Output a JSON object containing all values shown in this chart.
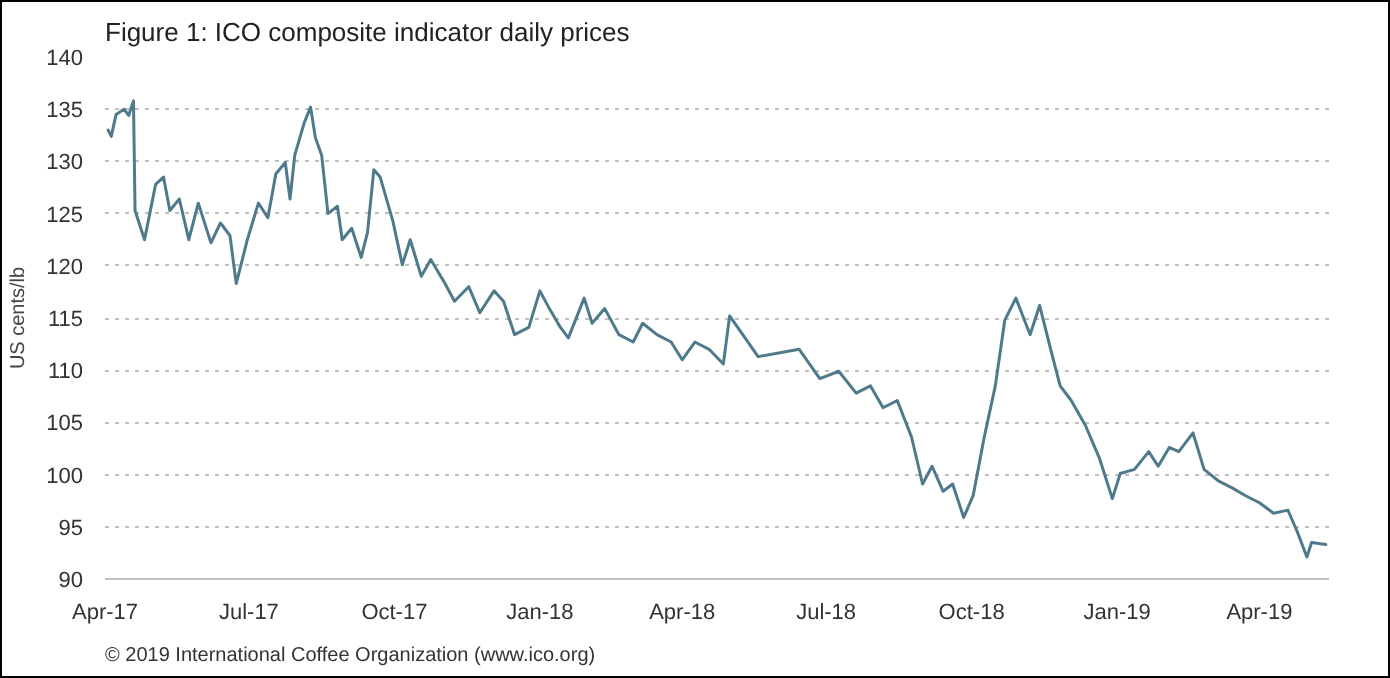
{
  "chart_data": {
    "type": "line",
    "title": "Figure 1: ICO composite indicator daily prices",
    "ylabel": "US cents/lb",
    "annotations": [
      "© 2019 International Coffee Organization (www.ico.org)"
    ],
    "xlim": [
      "2017-04-01",
      "2019-05-15"
    ],
    "xticks": [
      {
        "value": "2017-04-01",
        "label": "Apr-17"
      },
      {
        "value": "2017-07-01",
        "label": "Jul-17"
      },
      {
        "value": "2017-10-01",
        "label": "Oct-17"
      },
      {
        "value": "2018-01-01",
        "label": "Jan-18"
      },
      {
        "value": "2018-04-01",
        "label": "Apr-18"
      },
      {
        "value": "2018-07-01",
        "label": "Jul-18"
      },
      {
        "value": "2018-10-01",
        "label": "Oct-18"
      },
      {
        "value": "2019-01-01",
        "label": "Jan-19"
      },
      {
        "value": "2019-04-01",
        "label": "Apr-19"
      }
    ],
    "ylim": [
      90,
      140
    ],
    "yticks": [
      90,
      95,
      100,
      105,
      110,
      115,
      120,
      125,
      130,
      135,
      140
    ],
    "grid": "y",
    "marker": "none",
    "line_style": "solid",
    "x": [
      "2017-04-03",
      "2017-04-05",
      "2017-04-08",
      "2017-04-13",
      "2017-04-16",
      "2017-04-19",
      "2017-04-20",
      "2017-04-26",
      "2017-05-03",
      "2017-05-08",
      "2017-05-12",
      "2017-05-18",
      "2017-05-24",
      "2017-05-30",
      "2017-06-07",
      "2017-06-13",
      "2017-06-19",
      "2017-06-23",
      "2017-06-30",
      "2017-07-07",
      "2017-07-13",
      "2017-07-18",
      "2017-07-24",
      "2017-07-27",
      "2017-07-30",
      "2017-08-05",
      "2017-08-09",
      "2017-08-12",
      "2017-08-16",
      "2017-08-20",
      "2017-08-26",
      "2017-08-29",
      "2017-09-04",
      "2017-09-10",
      "2017-09-14",
      "2017-09-18",
      "2017-09-22",
      "2017-09-30",
      "2017-10-06",
      "2017-10-11",
      "2017-10-18",
      "2017-10-24",
      "2017-11-02",
      "2017-11-08",
      "2017-11-17",
      "2017-11-24",
      "2017-12-03",
      "2017-12-09",
      "2017-12-16",
      "2017-12-25",
      "2018-01-01",
      "2018-01-07",
      "2018-01-14",
      "2018-01-19",
      "2018-01-29",
      "2018-02-03",
      "2018-02-11",
      "2018-02-20",
      "2018-03-01",
      "2018-03-07",
      "2018-03-16",
      "2018-03-25",
      "2018-04-01",
      "2018-04-09",
      "2018-04-18",
      "2018-04-27",
      "2018-05-01",
      "2018-05-19",
      "2018-06-14",
      "2018-06-27",
      "2018-07-09",
      "2018-07-20",
      "2018-07-29",
      "2018-08-06",
      "2018-08-15",
      "2018-08-24",
      "2018-08-31",
      "2018-09-06",
      "2018-09-13",
      "2018-09-19",
      "2018-09-26",
      "2018-10-02",
      "2018-10-09",
      "2018-10-16",
      "2018-10-22",
      "2018-10-29",
      "2018-11-07",
      "2018-11-13",
      "2018-11-20",
      "2018-11-26",
      "2018-12-03",
      "2018-12-12",
      "2018-12-21",
      "2018-12-29",
      "2019-01-03",
      "2019-01-12",
      "2019-01-21",
      "2019-01-27",
      "2019-02-03",
      "2019-02-09",
      "2019-02-18",
      "2019-02-25",
      "2019-03-06",
      "2019-03-15",
      "2019-03-23",
      "2019-04-01",
      "2019-04-10",
      "2019-04-19",
      "2019-04-25",
      "2019-05-01",
      "2019-05-04",
      "2019-05-13"
    ],
    "series": [
      {
        "color": "#4e7a8c",
        "values": [
          133.0,
          132.4,
          134.5,
          135,
          134.4,
          135.8,
          125.3,
          122.5,
          127.8,
          128.5,
          125.3,
          126.4,
          122.5,
          126,
          122.2,
          124.1,
          122.9,
          118.3,
          122.5,
          126,
          124.6,
          128.8,
          129.9,
          126.4,
          130.6,
          133.7,
          135.2,
          132.3,
          130.6,
          125,
          125.7,
          122.5,
          123.6,
          120.8,
          123.2,
          129.2,
          128.5,
          124.3,
          120.1,
          122.5,
          119,
          120.6,
          118.3,
          116.6,
          118,
          115.5,
          117.6,
          116.6,
          113.4,
          114.1,
          117.6,
          115.9,
          114.1,
          113.1,
          116.9,
          114.5,
          115.9,
          113.4,
          112.7,
          114.5,
          113.4,
          112.7,
          111,
          112.7,
          112,
          110.6,
          115.2,
          111.3,
          112,
          109.2,
          109.9,
          107.8,
          108.5,
          106.4,
          107.1,
          103.6,
          99.1,
          100.8,
          98.4,
          99.1,
          95.9,
          98,
          103.6,
          108.5,
          114.8,
          116.9,
          113.4,
          116.2,
          112,
          108.5,
          107.1,
          104.7,
          101.5,
          97.7,
          100.1,
          100.5,
          102.2,
          100.8,
          102.6,
          102.2,
          104,
          100.5,
          99.4,
          98.7,
          98,
          97.3,
          96.3,
          96.6,
          94.5,
          92.1,
          93.5,
          93.3
        ]
      }
    ]
  }
}
